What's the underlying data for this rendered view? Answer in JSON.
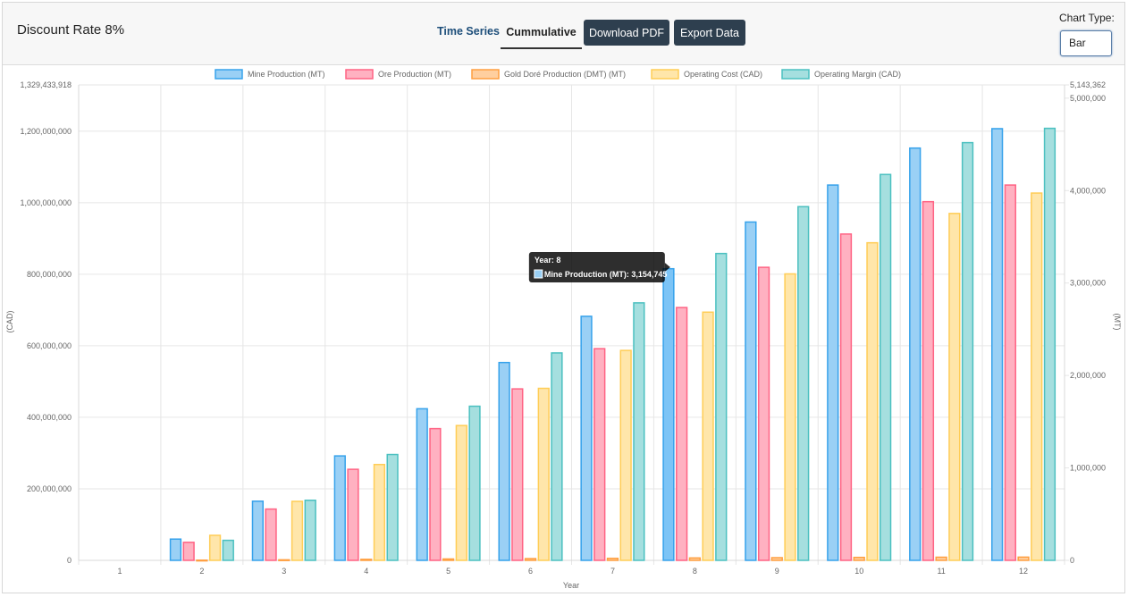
{
  "header": {
    "title": "Discount Rate 8%",
    "tabs": [
      {
        "label": "Time Series",
        "active": false
      },
      {
        "label": "Cummulative",
        "active": true
      }
    ],
    "download_pdf_label": "Download PDF",
    "export_data_label": "Export Data",
    "chart_type_label": "Chart Type:",
    "chart_type_value": "Bar"
  },
  "chart_data": {
    "type": "bar",
    "categories": [
      "1",
      "2",
      "3",
      "4",
      "5",
      "6",
      "7",
      "8",
      "9",
      "10",
      "11",
      "12"
    ],
    "xlabel": "Year",
    "y_left": {
      "label": "(CAD)",
      "max": 1329433918,
      "ticks": [
        0,
        200000000,
        400000000,
        600000000,
        800000000,
        1000000000,
        1200000000,
        1329433918
      ],
      "tick_labels": [
        "0",
        "200,000,000",
        "400,000,000",
        "600,000,000",
        "800,000,000",
        "1,000,000,000",
        "1,200,000,000",
        "1,329,433,918"
      ]
    },
    "y_right": {
      "label": "(MT)",
      "max": 5143362,
      "ticks": [
        0,
        1000000,
        2000000,
        3000000,
        4000000,
        5000000,
        5143362
      ],
      "tick_labels": [
        "0",
        "1,000,000",
        "2,000,000",
        "3,000,000",
        "4,000,000",
        "5,000,000",
        "5,143,362"
      ]
    },
    "grid": true,
    "legend_position": "top",
    "series": [
      {
        "name": "Mine Production (MT)",
        "axis": "right",
        "fill": "#9ad0f5",
        "stroke": "#36a2eb",
        "values": [
          0,
          230000,
          640000,
          1130000,
          1640000,
          2140000,
          2640000,
          3154745,
          3660000,
          4060000,
          4460000,
          4670000
        ]
      },
      {
        "name": "Ore Production (MT)",
        "axis": "right",
        "fill": "#ffb1c1",
        "stroke": "#ff6384",
        "values": [
          0,
          195000,
          555000,
          985000,
          1425000,
          1855000,
          2290000,
          2735000,
          3170000,
          3530000,
          3880000,
          4060000
        ]
      },
      {
        "name": "Gold Doré Production (DMT) (MT)",
        "axis": "right",
        "fill": "#ffcf9f",
        "stroke": "#ff9f40",
        "values": [
          0,
          2000,
          6000,
          11000,
          15000,
          19000,
          22000,
          26000,
          29000,
          32000,
          34000,
          35000
        ]
      },
      {
        "name": "Operating Cost (CAD)",
        "axis": "left",
        "fill": "#ffe6aa",
        "stroke": "#ffcd56",
        "values": [
          0,
          70000000,
          165000000,
          268000000,
          377000000,
          481000000,
          587000000,
          694000000,
          801000000,
          888000000,
          970000000,
          1027000000
        ]
      },
      {
        "name": "Operating Margin (CAD)",
        "axis": "left",
        "fill": "#a5dfdf",
        "stroke": "#4bc0c0",
        "values": [
          0,
          56000000,
          168000000,
          296000000,
          431000000,
          580000000,
          720000000,
          858000000,
          989000000,
          1079000000,
          1168000000,
          1208000000
        ]
      }
    ],
    "tooltip": {
      "title": "Year: 8",
      "body": "Mine Production (MT): 3,154,745",
      "series_index": 0,
      "category_index": 7
    }
  }
}
